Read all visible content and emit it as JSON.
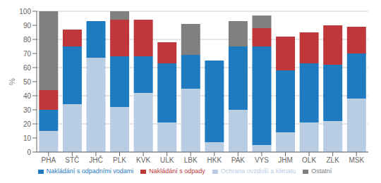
{
  "chart_data": {
    "type": "bar",
    "stacked": true,
    "categories": [
      "PHA",
      "STČ",
      "JHČ",
      "PLK",
      "KVK",
      "ULK",
      "LBK",
      "HKK",
      "PAK",
      "VYS",
      "JHM",
      "OLK",
      "ZLK",
      "MSK"
    ],
    "series": [
      {
        "name": "Ochrana ovzduší a klimatu",
        "color": "#b8cce4",
        "values": [
          15,
          34,
          67,
          32,
          42,
          21,
          45,
          7,
          30,
          5,
          14,
          21,
          22,
          38
        ]
      },
      {
        "name": "Nakládání s odpadními vodami",
        "color": "#1f7bbf",
        "values": [
          15,
          41,
          26,
          36,
          26,
          42,
          24,
          58,
          45,
          70,
          44,
          42,
          40,
          32
        ]
      },
      {
        "name": "Nakládání s odpady",
        "color": "#c0373a",
        "values": [
          14,
          12,
          0,
          26,
          26,
          15,
          0,
          0,
          0,
          13,
          24,
          22,
          28,
          19
        ]
      },
      {
        "name": "Ostatní",
        "color": "#808080",
        "values": [
          56,
          0,
          0,
          6,
          0,
          0,
          22,
          0,
          18,
          9,
          0,
          0,
          0,
          0
        ]
      }
    ],
    "ylabel": "%",
    "ylim": [
      0,
      100
    ],
    "yticks": [
      0,
      10,
      20,
      30,
      40,
      50,
      60,
      70,
      80,
      90,
      100
    ],
    "grid": true,
    "legend": "bottom"
  }
}
